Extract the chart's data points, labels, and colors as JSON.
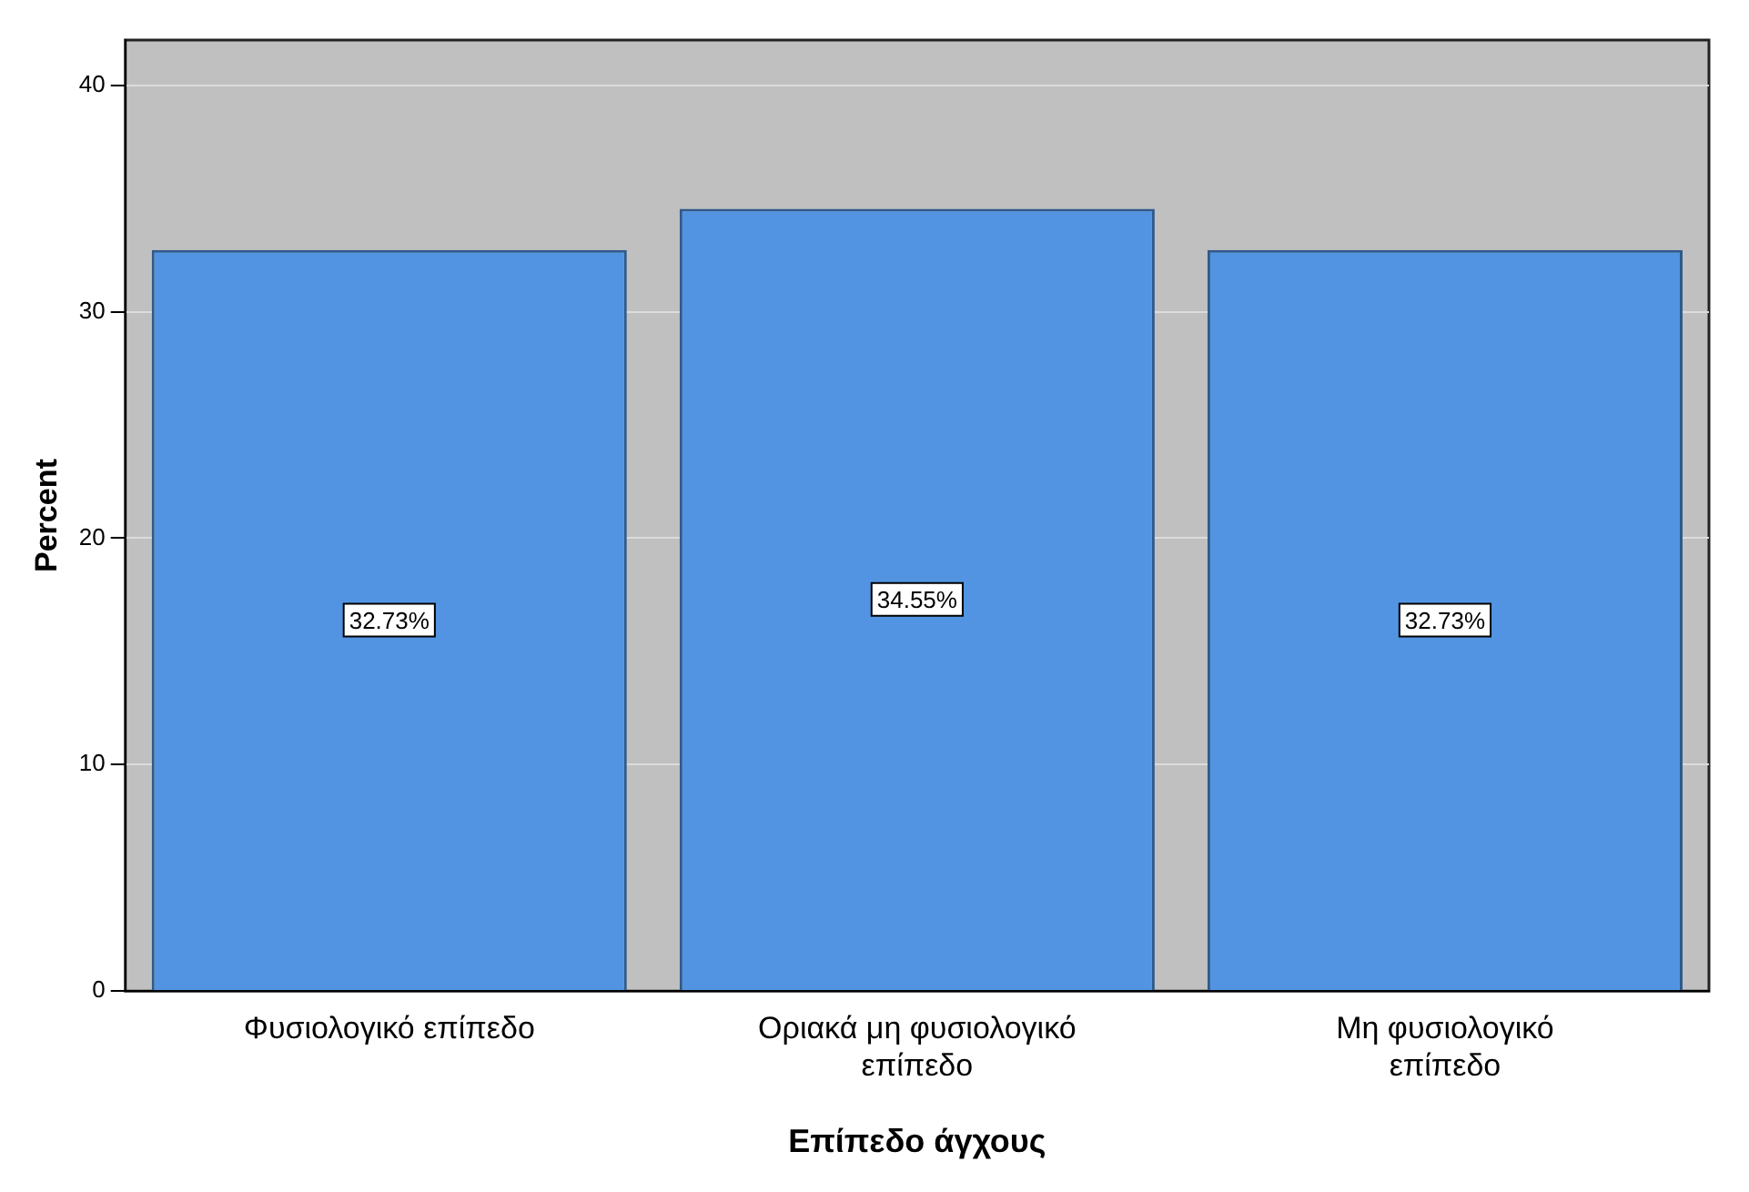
{
  "chart_data": {
    "type": "bar",
    "xlabel": "Επίπεδο άγχους",
    "ylabel": "Percent",
    "categories": [
      "Φυσιολογικό επίπεδο",
      "Οριακά μη φυσιολογικό επίπεδο",
      "Μη φυσιολογικό επίπεδο"
    ],
    "values": [
      32.73,
      34.55,
      32.73
    ],
    "value_labels": [
      "32.73%",
      "34.55%",
      "32.73%"
    ],
    "color": "#5294e2",
    "ylim": [
      0,
      42
    ],
    "yticks": [
      0,
      10,
      20,
      30,
      40
    ],
    "grid": "y",
    "legend": false
  }
}
